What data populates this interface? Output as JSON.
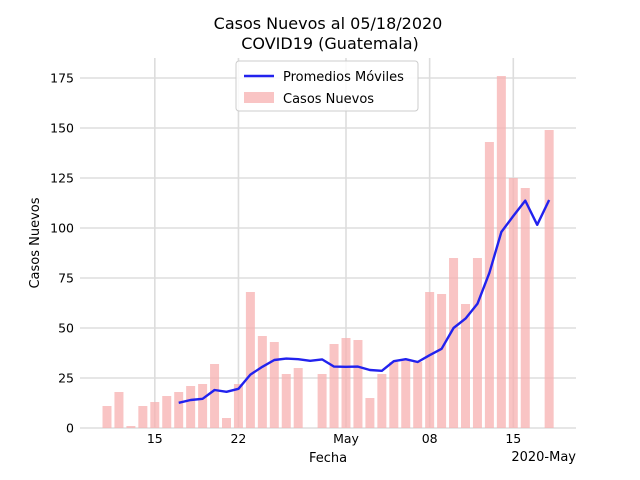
{
  "chart_data": {
    "type": "bar",
    "title_line1": "Casos Nuevos al 05/18/2020",
    "title_line2": "COVID19 (Guatemala)",
    "xlabel": "Fecha",
    "ylabel": "Casos Nuevos",
    "x_offset_label": "2020-May",
    "ylim": [
      0,
      185
    ],
    "yticks": [
      0,
      25,
      50,
      75,
      100,
      125,
      150,
      175
    ],
    "xticks": [
      {
        "date": "2020-04-15",
        "label": "15"
      },
      {
        "date": "2020-04-22",
        "label": "22"
      },
      {
        "date": "2020-05-01",
        "label": "May"
      },
      {
        "date": "2020-05-08",
        "label": "08"
      },
      {
        "date": "2020-05-15",
        "label": "15"
      }
    ],
    "grid": true,
    "legend_position": "top-center",
    "colors": {
      "bars": "#f7b0b0",
      "line": "#2222ee",
      "grid": "#dddddd"
    },
    "series": [
      {
        "name": "Casos Nuevos",
        "type": "bar",
        "points": [
          {
            "date": "2020-04-11",
            "value": 11
          },
          {
            "date": "2020-04-12",
            "value": 18
          },
          {
            "date": "2020-04-13",
            "value": 1
          },
          {
            "date": "2020-04-14",
            "value": 11
          },
          {
            "date": "2020-04-15",
            "value": 13
          },
          {
            "date": "2020-04-16",
            "value": 16
          },
          {
            "date": "2020-04-17",
            "value": 18
          },
          {
            "date": "2020-04-18",
            "value": 21
          },
          {
            "date": "2020-04-19",
            "value": 22
          },
          {
            "date": "2020-04-20",
            "value": 32
          },
          {
            "date": "2020-04-21",
            "value": 5
          },
          {
            "date": "2020-04-22",
            "value": 22
          },
          {
            "date": "2020-04-23",
            "value": 68
          },
          {
            "date": "2020-04-24",
            "value": 46
          },
          {
            "date": "2020-04-25",
            "value": 43
          },
          {
            "date": "2020-04-26",
            "value": 27
          },
          {
            "date": "2020-04-27",
            "value": 30
          },
          {
            "date": "2020-04-28",
            "value": 0
          },
          {
            "date": "2020-04-29",
            "value": 27
          },
          {
            "date": "2020-04-30",
            "value": 42
          },
          {
            "date": "2020-05-01",
            "value": 45
          },
          {
            "date": "2020-05-02",
            "value": 44
          },
          {
            "date": "2020-05-03",
            "value": 15
          },
          {
            "date": "2020-05-04",
            "value": 27
          },
          {
            "date": "2020-05-05",
            "value": 33
          },
          {
            "date": "2020-05-06",
            "value": 34
          },
          {
            "date": "2020-05-07",
            "value": 33
          },
          {
            "date": "2020-05-08",
            "value": 68
          },
          {
            "date": "2020-05-09",
            "value": 67
          },
          {
            "date": "2020-05-10",
            "value": 85
          },
          {
            "date": "2020-05-11",
            "value": 62
          },
          {
            "date": "2020-05-12",
            "value": 85
          },
          {
            "date": "2020-05-13",
            "value": 143
          },
          {
            "date": "2020-05-14",
            "value": 176
          },
          {
            "date": "2020-05-15",
            "value": 125
          },
          {
            "date": "2020-05-16",
            "value": 120
          },
          {
            "date": "2020-05-17",
            "value": 0
          },
          {
            "date": "2020-05-18",
            "value": 149
          }
        ]
      },
      {
        "name": "Promedios Móviles",
        "type": "line",
        "points": [
          {
            "date": "2020-04-17",
            "value": 12.6
          },
          {
            "date": "2020-04-18",
            "value": 14.0
          },
          {
            "date": "2020-04-19",
            "value": 14.6
          },
          {
            "date": "2020-04-20",
            "value": 19.0
          },
          {
            "date": "2020-04-21",
            "value": 18.1
          },
          {
            "date": "2020-04-22",
            "value": 19.6
          },
          {
            "date": "2020-04-23",
            "value": 26.7
          },
          {
            "date": "2020-04-24",
            "value": 30.6
          },
          {
            "date": "2020-04-25",
            "value": 34.0
          },
          {
            "date": "2020-04-26",
            "value": 34.7
          },
          {
            "date": "2020-04-27",
            "value": 34.4
          },
          {
            "date": "2020-04-28",
            "value": 33.6
          },
          {
            "date": "2020-04-29",
            "value": 34.3
          },
          {
            "date": "2020-04-30",
            "value": 30.7
          },
          {
            "date": "2020-05-01",
            "value": 30.6
          },
          {
            "date": "2020-05-02",
            "value": 30.7
          },
          {
            "date": "2020-05-03",
            "value": 29.0
          },
          {
            "date": "2020-05-04",
            "value": 28.6
          },
          {
            "date": "2020-05-05",
            "value": 33.4
          },
          {
            "date": "2020-05-06",
            "value": 34.4
          },
          {
            "date": "2020-05-07",
            "value": 33.0
          },
          {
            "date": "2020-05-08",
            "value": 36.4
          },
          {
            "date": "2020-05-09",
            "value": 39.6
          },
          {
            "date": "2020-05-10",
            "value": 50.0
          },
          {
            "date": "2020-05-11",
            "value": 54.7
          },
          {
            "date": "2020-05-12",
            "value": 62.1
          },
          {
            "date": "2020-05-13",
            "value": 77.6
          },
          {
            "date": "2020-05-14",
            "value": 98.0
          },
          {
            "date": "2020-05-15",
            "value": 106.0
          },
          {
            "date": "2020-05-16",
            "value": 113.7
          },
          {
            "date": "2020-05-17",
            "value": 101.6
          },
          {
            "date": "2020-05-18",
            "value": 114.0
          }
        ]
      }
    ]
  }
}
